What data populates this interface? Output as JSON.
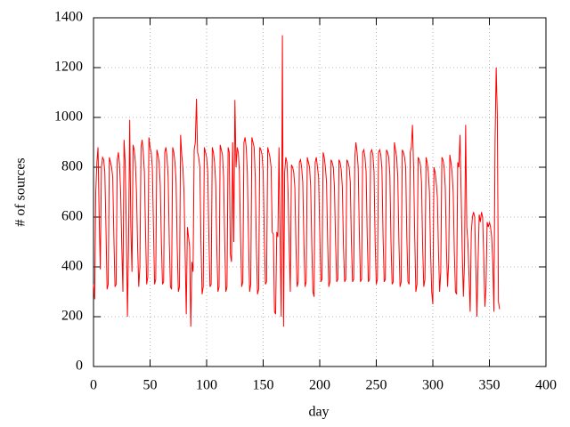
{
  "chart_data": {
    "type": "line",
    "xlabel": "day",
    "ylabel": "# of sources",
    "xlim": [
      0,
      400
    ],
    "xticks": [
      0,
      50,
      100,
      150,
      200,
      250,
      300,
      350,
      400
    ],
    "ylim": [
      0,
      1400
    ],
    "yticks": [
      0,
      200,
      400,
      600,
      800,
      1000,
      1200,
      1400
    ],
    "grid": true,
    "x": [
      0,
      1,
      2,
      3,
      4,
      5,
      6,
      7,
      8,
      9,
      10,
      11,
      12,
      13,
      14,
      15,
      16,
      17,
      18,
      19,
      20,
      21,
      22,
      23,
      24,
      25,
      26,
      27,
      28,
      29,
      30,
      31,
      32,
      33,
      34,
      35,
      36,
      37,
      38,
      39,
      40,
      41,
      42,
      43,
      44,
      45,
      46,
      47,
      48,
      49,
      50,
      51,
      52,
      53,
      54,
      55,
      56,
      57,
      58,
      59,
      60,
      61,
      62,
      63,
      64,
      65,
      66,
      67,
      68,
      69,
      70,
      71,
      72,
      73,
      74,
      75,
      76,
      77,
      78,
      79,
      80,
      81,
      82,
      83,
      84,
      85,
      86,
      87,
      88,
      89,
      90,
      91,
      92,
      93,
      94,
      95,
      96,
      97,
      98,
      99,
      100,
      101,
      102,
      103,
      104,
      105,
      106,
      107,
      108,
      109,
      110,
      111,
      112,
      113,
      114,
      115,
      116,
      117,
      118,
      119,
      120,
      121,
      122,
      123,
      124,
      125,
      126,
      127,
      128,
      129,
      130,
      131,
      132,
      133,
      134,
      135,
      136,
      137,
      138,
      139,
      140,
      141,
      142,
      143,
      144,
      145,
      146,
      147,
      148,
      149,
      150,
      151,
      152,
      153,
      154,
      155,
      156,
      157,
      158,
      159,
      160,
      161,
      162,
      163,
      164,
      165,
      166,
      167,
      168,
      169,
      170,
      171,
      172,
      173,
      174,
      175,
      176,
      177,
      178,
      179,
      180,
      181,
      182,
      183,
      184,
      185,
      186,
      187,
      188,
      189,
      190,
      191,
      192,
      193,
      194,
      195,
      196,
      197,
      198,
      199,
      200,
      201,
      202,
      203,
      204,
      205,
      206,
      207,
      208,
      209,
      210,
      211,
      212,
      213,
      214,
      215,
      216,
      217,
      218,
      219,
      220,
      221,
      222,
      223,
      224,
      225,
      226,
      227,
      228,
      229,
      230,
      231,
      232,
      233,
      234,
      235,
      236,
      237,
      238,
      239,
      240,
      241,
      242,
      243,
      244,
      245,
      246,
      247,
      248,
      249,
      250,
      251,
      252,
      253,
      254,
      255,
      256,
      257,
      258,
      259,
      260,
      261,
      262,
      263,
      264,
      265,
      266,
      267,
      268,
      269,
      270,
      271,
      272,
      273,
      274,
      275,
      276,
      277,
      278,
      279,
      280,
      281,
      282,
      283,
      284,
      285,
      286,
      287,
      288,
      289,
      290,
      291,
      292,
      293,
      294,
      295,
      296,
      297,
      298,
      299,
      300,
      301,
      302,
      303,
      304,
      305,
      306,
      307,
      308,
      309,
      310,
      311,
      312,
      313,
      314,
      315,
      316,
      317,
      318,
      319,
      320,
      321,
      322,
      323,
      324,
      325,
      326,
      327,
      328,
      329,
      330,
      331,
      332,
      333,
      334,
      335,
      336,
      337,
      338,
      339,
      340,
      341,
      342,
      343,
      344,
      345,
      346,
      347,
      348,
      349,
      350,
      351,
      352,
      353,
      354,
      355,
      356,
      357,
      358,
      359
    ],
    "series": [
      {
        "color": "#ff0000",
        "values": [
          330,
          270,
          700,
          820,
          880,
          600,
          390,
          800,
          840,
          830,
          780,
          560,
          310,
          330,
          840,
          820,
          800,
          760,
          520,
          320,
          330,
          830,
          860,
          810,
          700,
          480,
          300,
          910,
          820,
          560,
          200,
          500,
          990,
          560,
          380,
          890,
          870,
          820,
          700,
          480,
          320,
          400,
          880,
          910,
          860,
          780,
          540,
          330,
          360,
          920,
          880,
          860,
          800,
          560,
          330,
          350,
          870,
          850,
          820,
          730,
          500,
          330,
          340,
          860,
          880,
          840,
          760,
          500,
          320,
          310,
          880,
          860,
          820,
          740,
          480,
          300,
          320,
          930,
          850,
          800,
          700,
          460,
          210,
          560,
          520,
          480,
          160,
          420,
          380,
          870,
          900,
          1075,
          860,
          840,
          800,
          500,
          290,
          320,
          880,
          860,
          840,
          780,
          520,
          320,
          330,
          880,
          860,
          820,
          740,
          480,
          300,
          320,
          890,
          870,
          850,
          760,
          500,
          300,
          320,
          880,
          860,
          450,
          420,
          900,
          500,
          1070,
          800,
          880,
          860,
          780,
          520,
          320,
          340,
          900,
          920,
          880,
          780,
          520,
          300,
          330,
          920,
          900,
          880,
          760,
          480,
          290,
          310,
          880,
          870,
          850,
          780,
          520,
          330,
          340,
          880,
          860,
          840,
          800,
          540,
          530,
          220,
          210,
          540,
          520,
          880,
          500,
          200,
          1330,
          160,
          780,
          840,
          820,
          700,
          480,
          300,
          810,
          800,
          780,
          720,
          480,
          320,
          340,
          820,
          830,
          800,
          740,
          500,
          320,
          340,
          840,
          820,
          800,
          720,
          480,
          300,
          280,
          820,
          840,
          800,
          760,
          540,
          340,
          350,
          860,
          840,
          800,
          740,
          500,
          320,
          340,
          830,
          820,
          800,
          720,
          500,
          340,
          350,
          830,
          820,
          790,
          720,
          480,
          340,
          350,
          830,
          820,
          800,
          740,
          500,
          340,
          350,
          840,
          900,
          860,
          800,
          540,
          340,
          350,
          860,
          870,
          840,
          780,
          520,
          340,
          350,
          860,
          870,
          850,
          780,
          500,
          330,
          350,
          860,
          870,
          850,
          790,
          520,
          340,
          350,
          870,
          860,
          840,
          770,
          500,
          330,
          340,
          900,
          870,
          840,
          760,
          500,
          320,
          340,
          870,
          860,
          840,
          800,
          520,
          340,
          330,
          860,
          880,
          970,
          800,
          520,
          300,
          330,
          840,
          830,
          810,
          740,
          480,
          320,
          350,
          840,
          820,
          780,
          700,
          460,
          300,
          250,
          800,
          780,
          740,
          680,
          460,
          300,
          380,
          840,
          830,
          800,
          720,
          480,
          320,
          420,
          850,
          820,
          780,
          700,
          460,
          300,
          290,
          820,
          800,
          930,
          700,
          460,
          280,
          420,
          970,
          560,
          500,
          360,
          220,
          540,
          600,
          620,
          600,
          400,
          200,
          420,
          610,
          580,
          620,
          600,
          440,
          240,
          320,
          580,
          560,
          580,
          560,
          520,
          420,
          220,
          900,
          1200,
          1010,
          260,
          230
        ]
      }
    ]
  }
}
